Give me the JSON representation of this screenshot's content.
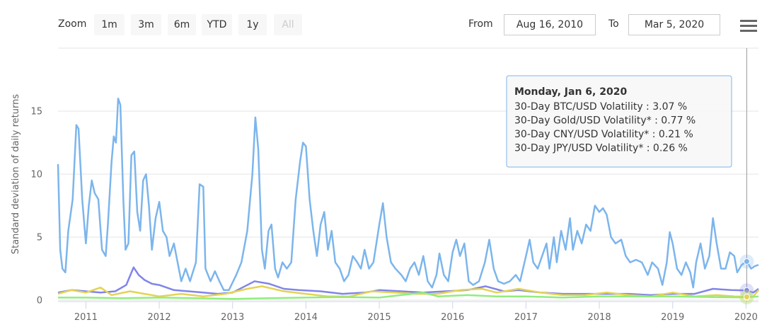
{
  "toolbar": {
    "zoom_label": "Zoom",
    "zoom_buttons": [
      "1m",
      "3m",
      "6m",
      "YTD",
      "1y",
      "All"
    ],
    "from_label": "From",
    "from_value": "Aug 16, 2010",
    "to_label": "To",
    "to_value": "Mar 5, 2020"
  },
  "chart_data": {
    "type": "line",
    "y_label": "Standard deviation of daily returns",
    "xlim": [
      2010.62,
      2020.17
    ],
    "xticks": [
      2011,
      2012,
      2013,
      2014,
      2015,
      2016,
      2017,
      2018,
      2019,
      2020
    ],
    "ylim": [
      0,
      20
    ],
    "yticks": [
      0,
      5,
      10,
      15
    ],
    "grid": true,
    "series": [
      {
        "name": "30-Day BTC/USD Volatility",
        "color": "#7cb5ec",
        "x": [
          2010.62,
          2010.65,
          2010.68,
          2010.72,
          2010.76,
          2010.82,
          2010.87,
          2010.9,
          2010.95,
          2011.0,
          2011.04,
          2011.08,
          2011.12,
          2011.17,
          2011.22,
          2011.27,
          2011.3,
          2011.35,
          2011.38,
          2011.41,
          2011.44,
          2011.47,
          2011.51,
          2011.54,
          2011.58,
          2011.62,
          2011.66,
          2011.7,
          2011.74,
          2011.78,
          2011.82,
          2011.86,
          2011.9,
          2011.95,
          2012.0,
          2012.05,
          2012.1,
          2012.14,
          2012.2,
          2012.25,
          2012.3,
          2012.36,
          2012.42,
          2012.5,
          2012.55,
          2012.6,
          2012.63,
          2012.7,
          2012.76,
          2012.82,
          2012.88,
          2012.95,
          2013.05,
          2013.12,
          2013.2,
          2013.27,
          2013.31,
          2013.35,
          2013.4,
          2013.44,
          2013.49,
          2013.53,
          2013.58,
          2013.62,
          2013.68,
          2013.74,
          2013.8,
          2013.86,
          2013.92,
          2013.96,
          2014.0,
          2014.05,
          2014.1,
          2014.15,
          2014.2,
          2014.25,
          2014.3,
          2014.35,
          2014.4,
          2014.46,
          2014.52,
          2014.58,
          2014.64,
          2014.7,
          2014.75,
          2014.8,
          2014.86,
          2014.92,
          2015.0,
          2015.05,
          2015.1,
          2015.16,
          2015.22,
          2015.3,
          2015.36,
          2015.42,
          2015.48,
          2015.54,
          2015.6,
          2015.66,
          2015.72,
          2015.78,
          2015.82,
          2015.88,
          2015.94,
          2016.0,
          2016.05,
          2016.1,
          2016.16,
          2016.22,
          2016.28,
          2016.36,
          2016.44,
          2016.5,
          2016.56,
          2016.62,
          2016.7,
          2016.78,
          2016.86,
          2016.92,
          2017.0,
          2017.05,
          2017.1,
          2017.16,
          2017.22,
          2017.28,
          2017.32,
          2017.38,
          2017.42,
          2017.48,
          2017.54,
          2017.6,
          2017.64,
          2017.7,
          2017.76,
          2017.82,
          2017.88,
          2017.94,
          2018.0,
          2018.05,
          2018.1,
          2018.16,
          2018.22,
          2018.3,
          2018.36,
          2018.42,
          2018.5,
          2018.58,
          2018.66,
          2018.72,
          2018.8,
          2018.86,
          2018.92,
          2018.96,
          2019.0,
          2019.06,
          2019.12,
          2019.18,
          2019.24,
          2019.28,
          2019.32,
          2019.38,
          2019.44,
          2019.5,
          2019.55,
          2019.6,
          2019.66,
          2019.72,
          2019.78,
          2019.84,
          2019.88,
          2019.94,
          2020.01,
          2020.07,
          2020.12,
          2020.17
        ],
        "values": [
          10.8,
          4,
          2.5,
          2.2,
          5.5,
          8,
          13.9,
          13.6,
          8,
          4.5,
          7.5,
          9.5,
          8.5,
          8,
          4,
          3.5,
          6,
          11,
          13,
          12.5,
          16,
          15.5,
          8,
          4,
          4.5,
          11.5,
          11.8,
          7,
          5.5,
          9.5,
          10,
          7.5,
          4,
          6.5,
          7.8,
          5.5,
          5,
          3.5,
          4.5,
          3,
          1.5,
          2.5,
          1.5,
          3,
          9.2,
          9,
          2.5,
          1.5,
          2.3,
          1.5,
          0.8,
          0.8,
          2,
          3,
          5.5,
          10,
          14.5,
          12,
          4,
          2.5,
          5.5,
          6,
          2.5,
          1.8,
          3,
          2.5,
          3,
          8,
          11,
          12.5,
          12.2,
          8,
          5.5,
          3.5,
          6,
          7,
          4,
          5.5,
          3,
          2.5,
          1.5,
          2,
          3.5,
          3,
          2.5,
          4,
          2.5,
          3,
          6,
          7.7,
          5,
          3,
          2.5,
          2,
          1.5,
          2.5,
          3,
          2,
          3.5,
          1.5,
          1,
          2,
          3.7,
          2,
          1.5,
          3.8,
          4.8,
          3.5,
          4.5,
          1.5,
          1.2,
          1.5,
          3,
          4.8,
          2.5,
          1.5,
          1.3,
          1.5,
          2,
          1.5,
          3.5,
          4.8,
          3,
          2.5,
          3.5,
          4.5,
          2.5,
          5,
          3,
          5.5,
          4,
          6.5,
          4,
          5.5,
          4.5,
          6,
          5.5,
          7.5,
          7,
          7.3,
          6.8,
          5,
          4.5,
          4.8,
          3.5,
          3,
          3.2,
          3,
          2,
          3,
          2.5,
          1.2,
          3,
          5.4,
          4.5,
          2.5,
          2,
          3,
          2.2,
          1,
          3,
          4.5,
          2.5,
          3.5,
          6.5,
          4.5,
          2.5,
          2.5,
          3.8,
          3.5,
          2.2,
          2.8,
          3.07,
          2.5,
          2.7,
          2.8
        ]
      },
      {
        "name": "30-Day Gold/USD Volatility*",
        "color": "#8085e9",
        "x": [
          2010.62,
          2010.8,
          2011.0,
          2011.2,
          2011.4,
          2011.55,
          2011.65,
          2011.72,
          2011.8,
          2011.9,
          2012.0,
          2012.2,
          2012.4,
          2012.6,
          2012.8,
          2013.0,
          2013.3,
          2013.5,
          2013.7,
          2013.9,
          2014.2,
          2014.5,
          2014.8,
          2015.0,
          2015.3,
          2015.6,
          2015.9,
          2016.2,
          2016.45,
          2016.7,
          2016.9,
          2017.2,
          2017.5,
          2017.8,
          2018.1,
          2018.4,
          2018.7,
          2019.0,
          2019.3,
          2019.55,
          2019.8,
          2020.01,
          2020.1,
          2020.17
        ],
        "values": [
          0.6,
          0.8,
          0.7,
          0.6,
          0.7,
          1.2,
          2.6,
          2,
          1.6,
          1.3,
          1.2,
          0.8,
          0.7,
          0.6,
          0.5,
          0.6,
          1.5,
          1.3,
          0.9,
          0.8,
          0.7,
          0.5,
          0.6,
          0.8,
          0.7,
          0.6,
          0.7,
          0.8,
          1.1,
          0.7,
          0.8,
          0.6,
          0.5,
          0.5,
          0.5,
          0.5,
          0.4,
          0.5,
          0.5,
          0.9,
          0.8,
          0.77,
          0.6,
          0.9
        ]
      },
      {
        "name": "30-Day CNY/USD Volatility*",
        "color": "#90ed7d",
        "x": [
          2010.62,
          2011.0,
          2011.5,
          2012.0,
          2012.5,
          2013.0,
          2013.5,
          2014.0,
          2014.5,
          2015.0,
          2015.6,
          2015.8,
          2016.2,
          2016.6,
          2017.0,
          2017.5,
          2018.0,
          2018.5,
          2019.0,
          2019.5,
          2020.01,
          2020.17
        ],
        "values": [
          0.2,
          0.2,
          0.15,
          0.2,
          0.15,
          0.1,
          0.15,
          0.2,
          0.25,
          0.2,
          0.6,
          0.3,
          0.4,
          0.3,
          0.3,
          0.2,
          0.3,
          0.3,
          0.3,
          0.25,
          0.21,
          0.3
        ]
      },
      {
        "name": "30-Day JPY/USD Volatility*",
        "color": "#e4d354",
        "x": [
          2010.62,
          2010.8,
          2011.0,
          2011.2,
          2011.35,
          2011.6,
          2011.8,
          2012.0,
          2012.3,
          2012.6,
          2012.9,
          2013.2,
          2013.4,
          2013.7,
          2014.0,
          2014.3,
          2014.6,
          2014.9,
          2015.2,
          2015.5,
          2015.8,
          2016.1,
          2016.4,
          2016.6,
          2016.9,
          2017.2,
          2017.5,
          2017.8,
          2018.1,
          2018.4,
          2018.7,
          2019.0,
          2019.3,
          2019.6,
          2019.85,
          2020.01,
          2020.1,
          2020.17
        ],
        "values": [
          0.5,
          0.8,
          0.6,
          1.0,
          0.4,
          0.7,
          0.5,
          0.3,
          0.5,
          0.3,
          0.5,
          0.9,
          1.1,
          0.7,
          0.5,
          0.3,
          0.3,
          0.7,
          0.6,
          0.5,
          0.5,
          0.8,
          0.9,
          0.6,
          0.9,
          0.6,
          0.4,
          0.4,
          0.6,
          0.4,
          0.3,
          0.6,
          0.3,
          0.4,
          0.3,
          0.26,
          0.3,
          0.8
        ]
      }
    ]
  },
  "tooltip": {
    "title": "Monday, Jan 6, 2020",
    "x": 2020.01,
    "lines": [
      "30-Day BTC/USD Volatility : 3.07 %",
      "30-Day Gold/USD Volatility* : 0.77 %",
      "30-Day CNY/USD Volatility* : 0.21 %",
      "30-Day JPY/USD Volatility* : 0.26 %"
    ]
  }
}
